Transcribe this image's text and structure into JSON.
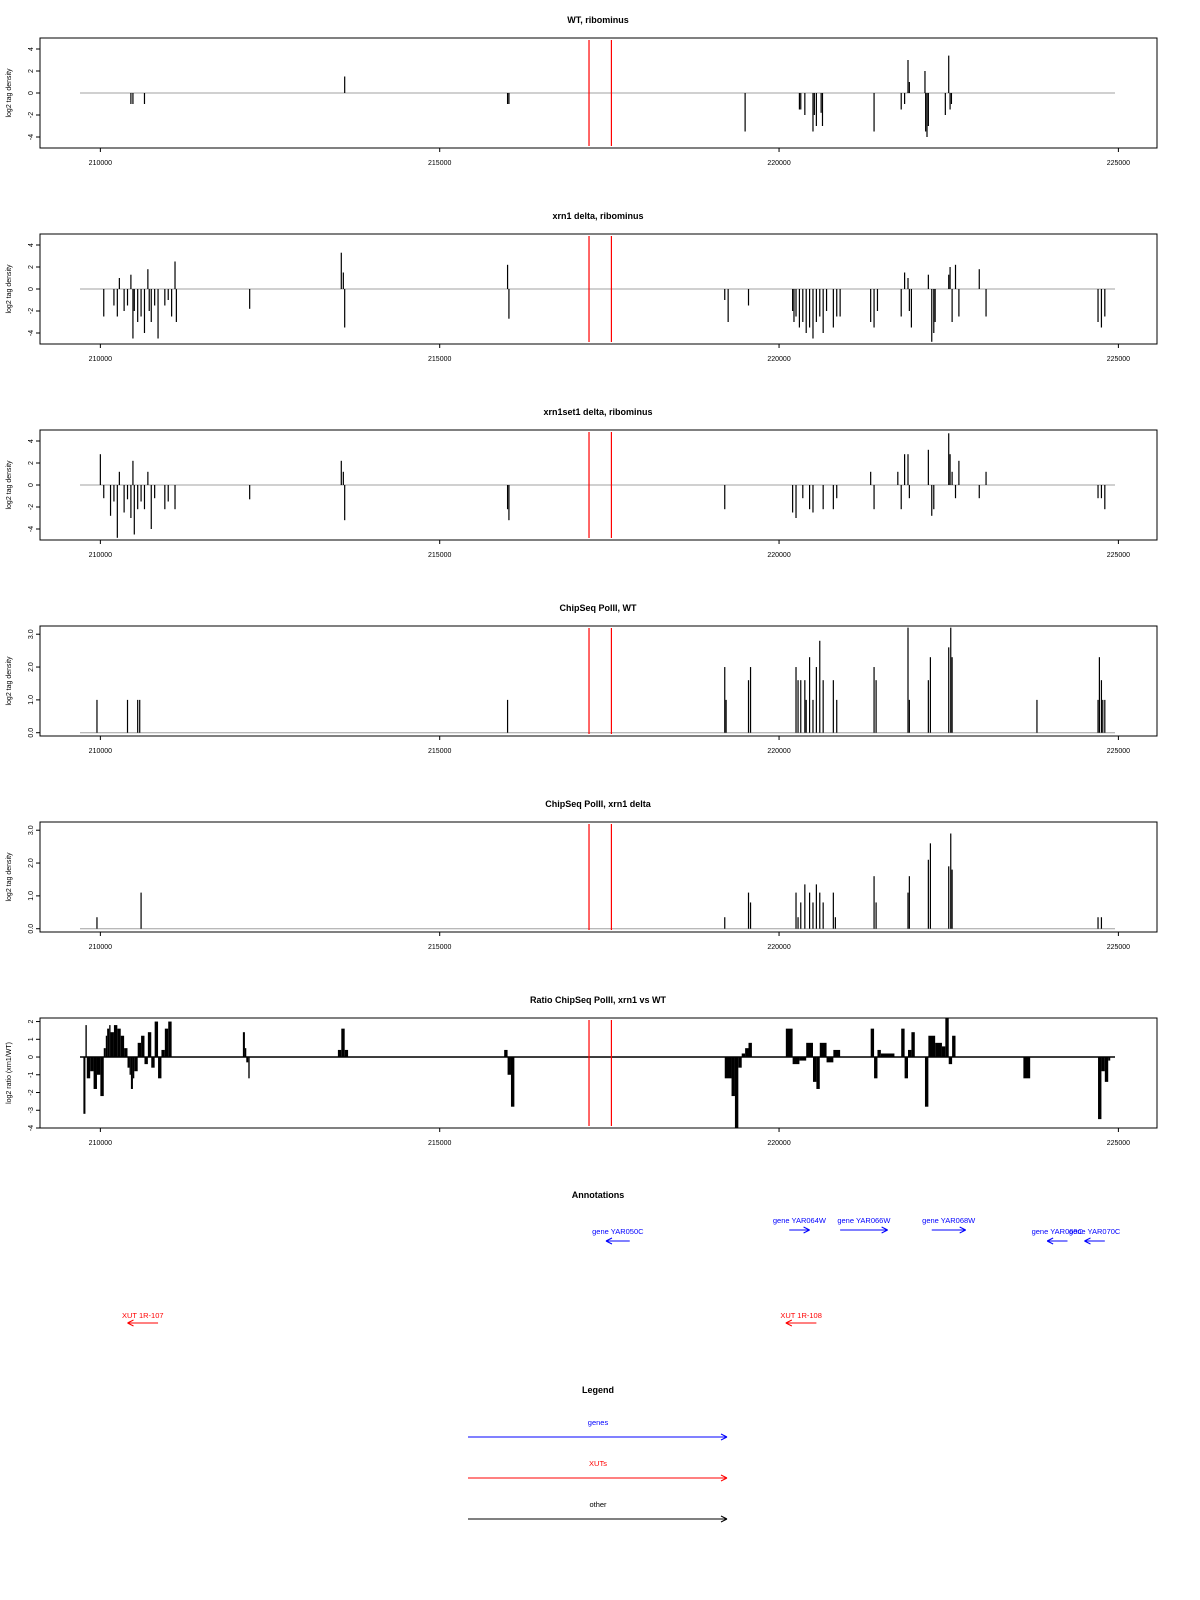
{
  "x_axis": {
    "min": 209700,
    "max": 224950,
    "ticks": [
      210000,
      215000,
      220000,
      225000
    ]
  },
  "red_markers_x": [
    217200,
    217530
  ],
  "colors": {
    "data": "#000000",
    "baseline": "#a0a0a0",
    "marker": "#ff0000",
    "gene": "#0000ff",
    "xut": "#ff0000",
    "other": "#000000"
  },
  "chart_data": [
    {
      "type": "bar",
      "title": "WT, ribominus",
      "ylabel": "log2 tag density",
      "ylim": [
        -5,
        5
      ],
      "yticks": [
        -4,
        -2,
        0,
        2,
        4
      ],
      "ytick_labels": [
        "-4",
        "-2",
        "0",
        "2",
        "4"
      ],
      "x": [
        210450,
        210480,
        210650,
        213600,
        216000,
        216020,
        219500,
        220300,
        220320,
        220380,
        220500,
        220520,
        220550,
        220620,
        220640,
        221400,
        221800,
        221850,
        221900,
        221920,
        222150,
        222160,
        222180,
        222200,
        222450,
        222500,
        222520,
        222540
      ],
      "values": [
        -1,
        -1,
        -1,
        1.5,
        -1,
        -1,
        -3.5,
        -1.5,
        -1.5,
        -2,
        -3.5,
        -2,
        -3,
        -1.8,
        -3,
        -3.5,
        -1.5,
        -1,
        3,
        1,
        2,
        -3.5,
        -4,
        -3,
        -2,
        3.4,
        -1.5,
        -1
      ]
    },
    {
      "type": "bar",
      "title": "xrn1 delta, ribominus",
      "ylabel": "log2 tag density",
      "ylim": [
        -5,
        5
      ],
      "yticks": [
        -4,
        -2,
        0,
        2,
        4
      ],
      "ytick_labels": [
        "-4",
        "-2",
        "0",
        "2",
        "4"
      ],
      "x": [
        210050,
        210200,
        210250,
        210280,
        210350,
        210400,
        210450,
        210480,
        210500,
        210550,
        210600,
        210650,
        210700,
        210720,
        210750,
        210800,
        210850,
        210950,
        211000,
        211050,
        211100,
        211120,
        212200,
        213550,
        213580,
        213600,
        216000,
        216020,
        219200,
        219250,
        219550,
        220200,
        220220,
        220250,
        220300,
        220350,
        220400,
        220450,
        220500,
        220550,
        220600,
        220650,
        220700,
        220800,
        220850,
        220900,
        221350,
        221400,
        221450,
        221800,
        221850,
        221900,
        221920,
        221950,
        222200,
        222250,
        222280,
        222300,
        222500,
        222520,
        222550,
        222600,
        222650,
        222950,
        223050,
        224700,
        224750,
        224800
      ],
      "values": [
        -2.5,
        -1.5,
        -2.5,
        1,
        -2,
        -1.5,
        1.3,
        -4.5,
        -2,
        -3,
        -2.5,
        -4,
        1.8,
        -2,
        -3,
        -1.5,
        -4.5,
        -1.5,
        -1,
        -2.5,
        2.5,
        -3,
        -1.8,
        3.3,
        1.5,
        -3.5,
        2.2,
        -2.7,
        -1,
        -3,
        -1.5,
        -2,
        -3,
        -2.5,
        -3.5,
        -3,
        -4,
        -3.5,
        -4.5,
        -3,
        -2.5,
        -4,
        -2,
        -3.5,
        -2.5,
        -2.5,
        -3,
        -3.5,
        -2,
        -2.5,
        1.5,
        1,
        -2,
        -3.5,
        1.3,
        -4.8,
        -4,
        -3,
        1.3,
        2,
        -3,
        2.2,
        -2.5,
        1.8,
        -2.5,
        -3,
        -3.5,
        -2.5
      ]
    },
    {
      "type": "bar",
      "title": "xrn1set1 delta, ribominus",
      "ylabel": "log2 tag density",
      "ylim": [
        -5,
        5
      ],
      "yticks": [
        -4,
        -2,
        0,
        2,
        4
      ],
      "ytick_labels": [
        "-4",
        "-2",
        "0",
        "2",
        "4"
      ],
      "x": [
        210000,
        210050,
        210150,
        210200,
        210250,
        210280,
        210350,
        210400,
        210450,
        210480,
        210500,
        210550,
        210600,
        210650,
        210700,
        210750,
        210800,
        210950,
        211000,
        211100,
        212200,
        213550,
        213580,
        213600,
        216000,
        216020,
        219200,
        220200,
        220250,
        220350,
        220450,
        220500,
        220650,
        220800,
        220850,
        221350,
        221400,
        221750,
        221800,
        221850,
        221900,
        221920,
        222200,
        222250,
        222280,
        222500,
        222520,
        222550,
        222600,
        222650,
        222950,
        223050,
        224700,
        224750,
        224800
      ],
      "values": [
        2.8,
        -1.2,
        -2.8,
        -1.5,
        -4.8,
        1.2,
        -2.5,
        -1.3,
        -3,
        2.2,
        -4.5,
        -2.2,
        -1.5,
        -2.2,
        1.2,
        -4,
        -1.2,
        -2.2,
        -1.5,
        -2.2,
        -1.3,
        2.2,
        1.2,
        -3.2,
        -2.2,
        -3.2,
        -2.2,
        -2.5,
        -3,
        -1.2,
        -2.2,
        -2.5,
        -2.2,
        -2.2,
        -1.2,
        1.2,
        -2.2,
        1.2,
        -2.2,
        2.8,
        2.8,
        -1.2,
        3.2,
        -2.8,
        -2.2,
        4.7,
        2.8,
        1.2,
        -1.2,
        2.2,
        -1.2,
        1.2,
        -1.2,
        -1.2,
        -2.2
      ]
    },
    {
      "type": "bar",
      "title": "ChipSeq PolII, WT",
      "ylabel": "log2 tag density",
      "ylim": [
        -0.1,
        3.25
      ],
      "yticks": [
        0,
        1,
        2,
        3
      ],
      "ytick_labels": [
        "0.0",
        "1.0",
        "2.0",
        "3.0"
      ],
      "x": [
        209950,
        210400,
        210550,
        210580,
        216000,
        219200,
        219220,
        219550,
        219580,
        220250,
        220280,
        220320,
        220380,
        220400,
        220450,
        220500,
        220550,
        220600,
        220650,
        220800,
        220850,
        221400,
        221430,
        221900,
        221920,
        222200,
        222230,
        222500,
        222530,
        222550,
        223800,
        224700,
        224720,
        224750,
        224770,
        224800
      ],
      "values": [
        1,
        1,
        1,
        1,
        1,
        2,
        1,
        1.6,
        2,
        2,
        1.6,
        1.6,
        1.6,
        1,
        2.3,
        1,
        2,
        2.8,
        1.6,
        1.6,
        1,
        2,
        1.6,
        3.2,
        1,
        1.6,
        2.3,
        2.6,
        3.2,
        2.3,
        1,
        1,
        2.3,
        1.6,
        1,
        1
      ]
    },
    {
      "type": "bar",
      "title": "ChipSeq PolII, xrn1 delta",
      "ylabel": "log2 tag density",
      "ylim": [
        -0.1,
        3.25
      ],
      "yticks": [
        0,
        1,
        2,
        3
      ],
      "ytick_labels": [
        "0.0",
        "1.0",
        "2.0",
        "3.0"
      ],
      "x": [
        209950,
        210600,
        219200,
        219550,
        219580,
        220250,
        220280,
        220320,
        220380,
        220450,
        220500,
        220550,
        220600,
        220650,
        220800,
        220830,
        221400,
        221430,
        221900,
        221920,
        222200,
        222230,
        222500,
        222530,
        222550,
        224700,
        224750
      ],
      "values": [
        0.35,
        1.1,
        0.35,
        1.1,
        0.8,
        1.1,
        0.35,
        0.8,
        1.35,
        1.1,
        0.8,
        1.35,
        1.1,
        0.8,
        1.1,
        0.35,
        1.6,
        0.8,
        1.1,
        1.6,
        2.1,
        2.6,
        1.9,
        2.9,
        1.8,
        0.35,
        0.35
      ]
    },
    {
      "type": "area",
      "title": "Ratio ChipSeq PolII, xrn1 vs WT",
      "ylabel": "log2 ratio (xrn1/WT)",
      "ylim": [
        -4,
        2.2
      ],
      "yticks": [
        -4,
        -3,
        -2,
        -1,
        0,
        1,
        2
      ],
      "ytick_labels": [
        "-4",
        "-3",
        "-2",
        "-1",
        "0",
        "1",
        "2"
      ],
      "x": [
        209750,
        209780,
        209800,
        209850,
        209900,
        209950,
        210000,
        210050,
        210080,
        210100,
        210130,
        210150,
        210200,
        210250,
        210300,
        210350,
        210400,
        210430,
        210450,
        210480,
        210500,
        210550,
        210600,
        210650,
        210700,
        210750,
        210800,
        210850,
        210900,
        210950,
        211000,
        211050,
        211100,
        211150,
        211500,
        212100,
        212130,
        212150,
        212180,
        212200,
        212250,
        213400,
        213500,
        213550,
        213600,
        213650,
        213700,
        215900,
        215950,
        216000,
        216050,
        216100,
        219100,
        219200,
        219300,
        219350,
        219400,
        219450,
        219500,
        219550,
        219600,
        219700,
        220100,
        220200,
        220300,
        220400,
        220500,
        220550,
        220600,
        220700,
        220800,
        220900,
        221000,
        221300,
        221350,
        221400,
        221450,
        221500,
        221700,
        221800,
        221850,
        221900,
        221950,
        222000,
        222100,
        222150,
        222200,
        222300,
        222400,
        222450,
        222500,
        222550,
        222600,
        222700,
        223500,
        223600,
        223700,
        223800,
        224600,
        224700,
        224750,
        224800,
        224850
      ],
      "values": [
        -3.2,
        1.8,
        -1.2,
        -0.8,
        -1.8,
        -1,
        -2.2,
        0.5,
        1.2,
        1.6,
        1.8,
        1.4,
        1.8,
        1.6,
        1.2,
        0.5,
        -0.6,
        -1,
        -1.8,
        -1.2,
        -0.8,
        0.8,
        1.2,
        -0.4,
        1.4,
        -0.6,
        2,
        -1.2,
        0.4,
        1.6,
        2,
        0,
        0,
        0,
        0,
        1.4,
        0.5,
        -0.3,
        -1.2,
        0,
        0,
        0,
        0.4,
        1.6,
        0.4,
        0,
        0,
        0,
        0.4,
        -1,
        -2.8,
        0,
        0,
        -1.2,
        -2.2,
        -4,
        -0.6,
        0.2,
        0.5,
        0.8,
        0,
        0,
        1.6,
        -0.4,
        -0.2,
        0.8,
        -1.4,
        -1.8,
        0.8,
        -0.3,
        0.4,
        0,
        0,
        0,
        1.6,
        -1.2,
        0.4,
        0.2,
        0,
        1.6,
        -1.2,
        0.4,
        1.4,
        0,
        0,
        -2.8,
        1.2,
        0.8,
        0.6,
        2.2,
        -0.4,
        1.2,
        0,
        0,
        0,
        -1.2,
        0,
        0,
        0,
        -3.5,
        -0.8,
        -1.4,
        -0.2
      ]
    }
  ],
  "annotations": {
    "title": "Annotations",
    "genes": [
      {
        "label": "gene YAR050C",
        "start": 217800,
        "end": 217450
      },
      {
        "label": "gene YAR064W",
        "start": 220150,
        "end": 220450
      },
      {
        "label": "gene YAR066W",
        "start": 220900,
        "end": 221600
      },
      {
        "label": "gene YAR068W",
        "start": 222250,
        "end": 222750
      },
      {
        "label": "gene YAR069C",
        "start": 224250,
        "end": 223950
      },
      {
        "label": "gene YAR070C",
        "start": 224800,
        "end": 224500
      }
    ],
    "xuts": [
      {
        "label": "XUT 1R-107",
        "start": 210850,
        "end": 210400
      },
      {
        "label": "XUT 1R-108",
        "start": 220550,
        "end": 220100
      }
    ]
  },
  "legend": {
    "title": "Legend",
    "items": [
      {
        "label": "genes",
        "color": "#0000ff"
      },
      {
        "label": "XUTs",
        "color": "#ff0000"
      },
      {
        "label": "other",
        "color": "#000000"
      }
    ]
  }
}
